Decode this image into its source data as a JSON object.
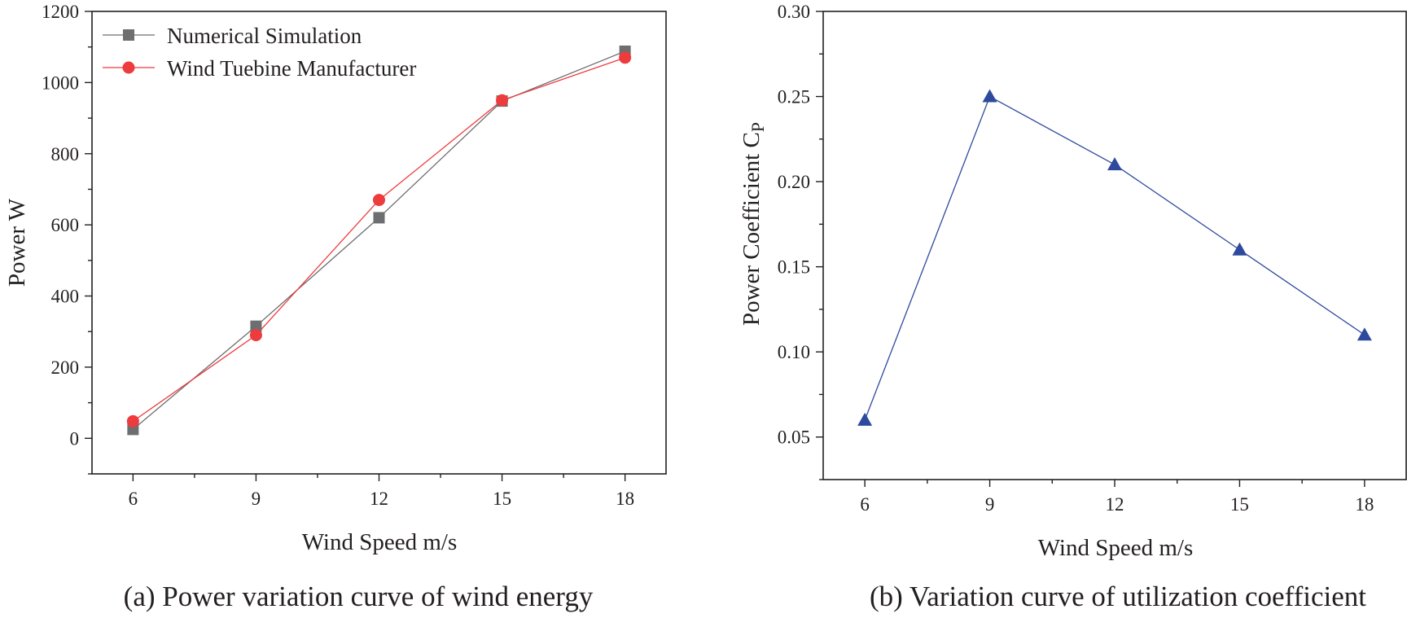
{
  "chart_data": [
    {
      "type": "line",
      "title": "",
      "caption": "(a) Power variation curve of wind energy",
      "xlabel": "Wind Speed m/s",
      "ylabel": "Power W",
      "x": [
        6,
        9,
        12,
        15,
        18
      ],
      "xticks": [
        6,
        9,
        12,
        15,
        18
      ],
      "xlim": [
        5,
        19
      ],
      "yticks": [
        0,
        200,
        400,
        600,
        800,
        1000,
        1200
      ],
      "ylim": [
        -100,
        1200
      ],
      "legend_position": "top-left",
      "series": [
        {
          "name": "Numerical Simulation",
          "marker": "square",
          "color": "#6d6e70",
          "values": [
            25,
            315,
            620,
            948,
            1088
          ]
        },
        {
          "name": "Wind Tuebine Manufacturer",
          "marker": "circle",
          "color": "#ed3b3e",
          "values": [
            48,
            290,
            670,
            950,
            1070
          ]
        }
      ]
    },
    {
      "type": "line",
      "title": "",
      "caption": "(b) Variation curve of utilization coefficient",
      "xlabel": "Wind Speed m/s",
      "ylabel": "Power Coefficient C",
      "ylabel_sub": "P",
      "x": [
        6,
        9,
        12,
        15,
        18
      ],
      "xticks": [
        6,
        9,
        12,
        15,
        18
      ],
      "xlim": [
        5,
        19
      ],
      "yticks": [
        0.05,
        0.1,
        0.15,
        0.2,
        0.25,
        0.3
      ],
      "ytick_labels": [
        "0.05",
        "0.10",
        "0.15",
        "0.20",
        "0.25",
        "0.30"
      ],
      "ylim": [
        0.025,
        0.3
      ],
      "series": [
        {
          "name": "Power Coefficient",
          "marker": "triangle",
          "color": "#2e4a9e",
          "values": [
            0.06,
            0.25,
            0.21,
            0.16,
            0.11
          ]
        }
      ]
    }
  ]
}
